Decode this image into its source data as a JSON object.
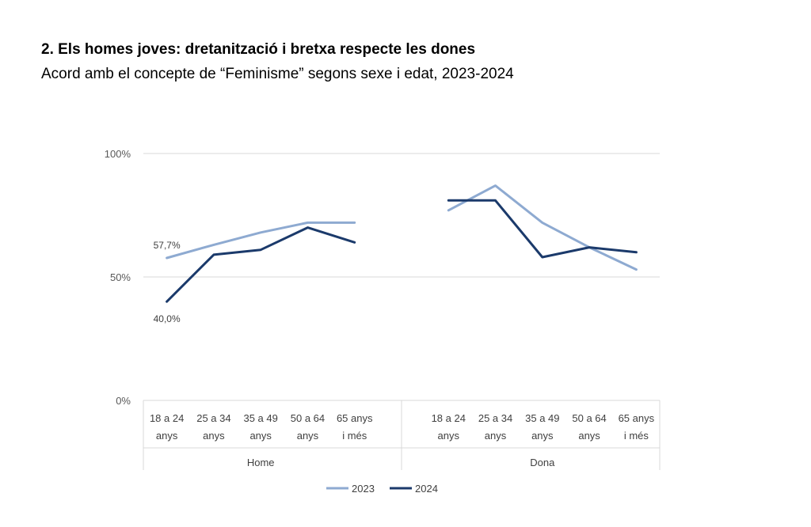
{
  "title": "2. Els homes joves: dretanització i bretxa respecte les dones",
  "subtitle": "Acord amb el concepte de “Feminisme” segons sexe i edat, 2023-2024",
  "chart_data": {
    "type": "line",
    "ylim": [
      0,
      100
    ],
    "yticks": [
      {
        "value": 100,
        "label": "100%"
      },
      {
        "value": 50,
        "label": "50%"
      },
      {
        "value": 0,
        "label": "0%"
      }
    ],
    "groups": [
      {
        "name": "Home",
        "categories": [
          [
            "18 a 24",
            "anys"
          ],
          [
            "25 a 34",
            "anys"
          ],
          [
            "35 a 49",
            "anys"
          ],
          [
            "50 a 64",
            "anys"
          ],
          [
            "65 anys",
            "i més"
          ]
        ]
      },
      {
        "name": "Dona",
        "categories": [
          [
            "18 a 24",
            "anys"
          ],
          [
            "25 a 34",
            "anys"
          ],
          [
            "35 a 49",
            "anys"
          ],
          [
            "50 a 64",
            "anys"
          ],
          [
            "65 anys",
            "i més"
          ]
        ]
      }
    ],
    "series": [
      {
        "name": "2023",
        "color": "#8eaad1",
        "values": [
          [
            57.7,
            63,
            68,
            72,
            72
          ],
          [
            77,
            87,
            72,
            62,
            53
          ]
        ]
      },
      {
        "name": "2024",
        "color": "#1b3a6b",
        "values": [
          [
            40.0,
            59,
            61,
            70,
            64
          ],
          [
            81,
            81,
            58,
            62,
            60
          ]
        ]
      }
    ],
    "annotations": [
      {
        "text": "57,7%",
        "series": 0,
        "group": 0,
        "index": 0,
        "pos": "above"
      },
      {
        "text": "40,0%",
        "series": 1,
        "group": 0,
        "index": 0,
        "pos": "below"
      }
    ],
    "grid": true,
    "legend": "bottom-center"
  }
}
